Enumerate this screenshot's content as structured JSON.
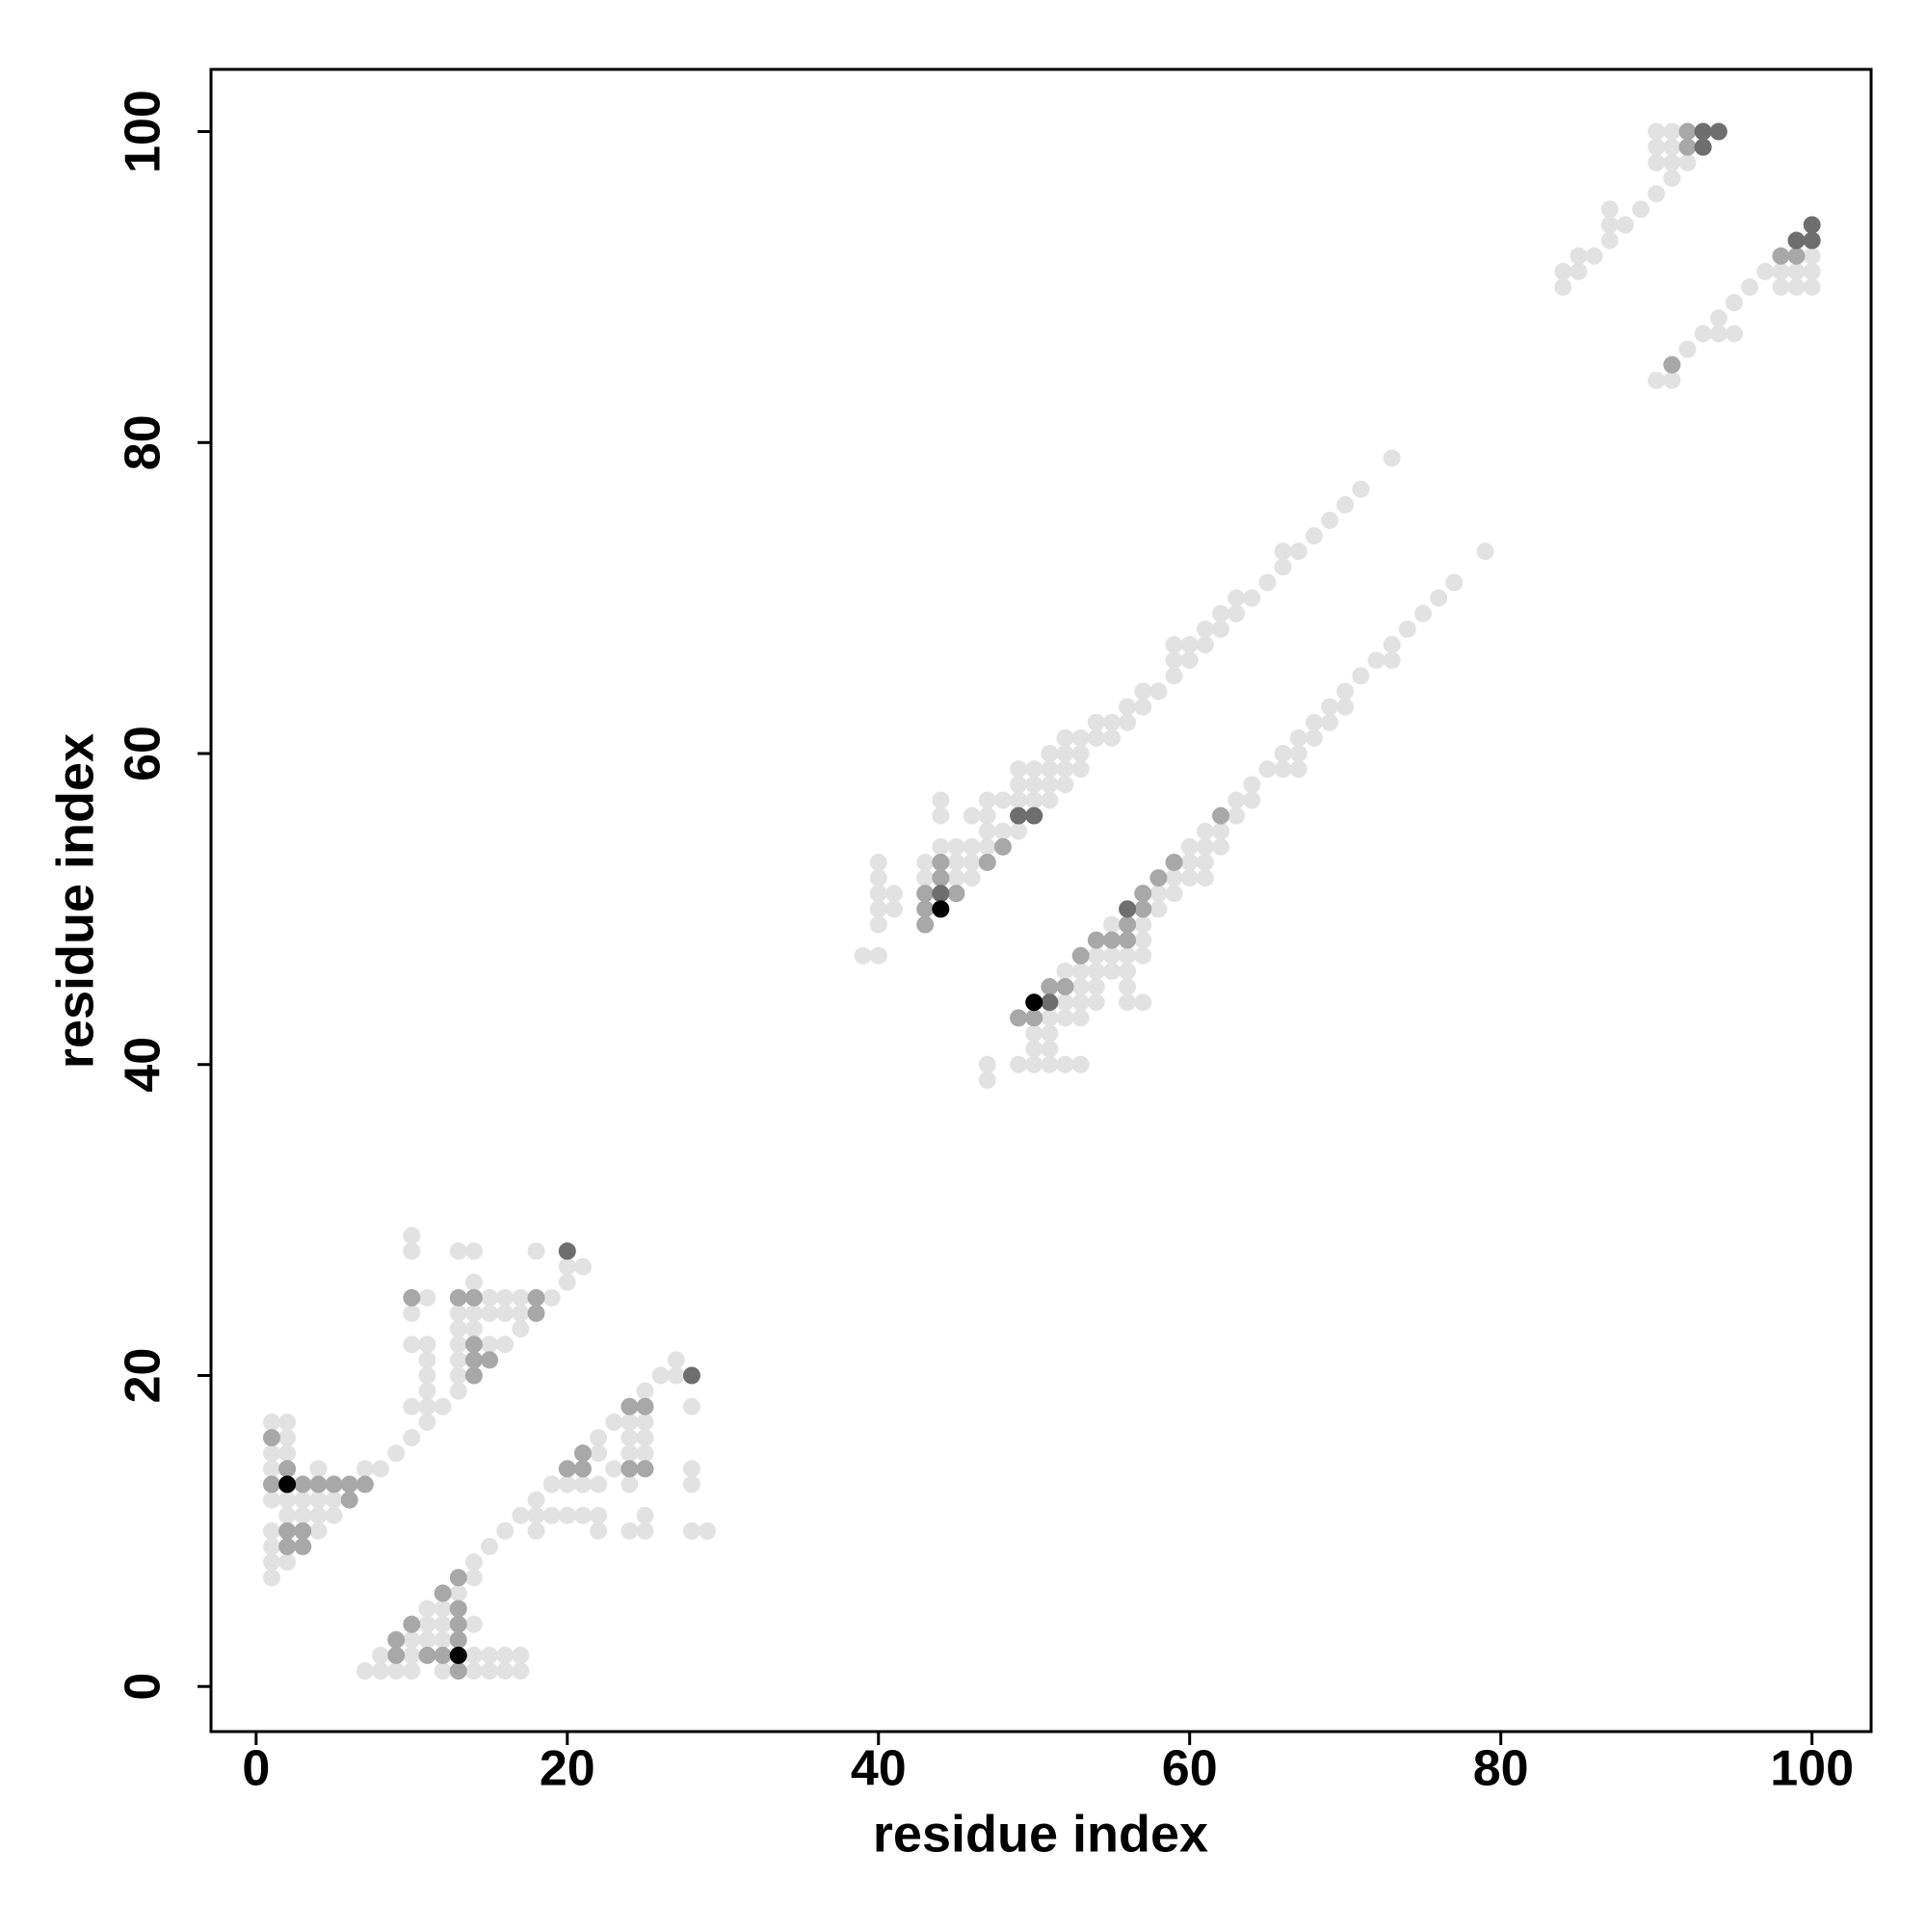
{
  "chart_data": {
    "type": "scatter",
    "xlabel": "residue index",
    "ylabel": "residue index",
    "xlim": [
      -2.9,
      103.8
    ],
    "ylim": [
      -2.9,
      104
    ],
    "xticks": [
      0,
      20,
      40,
      60,
      80,
      100
    ],
    "yticks": [
      0,
      20,
      40,
      60,
      80,
      100
    ],
    "series": [
      {
        "color": "#e2e2e2",
        "x": [
          1,
          1,
          1,
          1,
          1,
          1,
          1,
          1,
          2,
          2,
          2,
          2,
          2,
          2,
          3,
          3,
          4,
          4,
          4,
          4,
          5,
          5,
          7,
          7,
          8,
          8,
          8,
          9,
          9,
          10,
          10,
          10,
          10,
          10,
          10,
          10,
          10,
          10,
          11,
          11,
          11,
          11,
          11,
          11,
          11,
          11,
          11,
          11,
          12,
          12,
          12,
          12,
          12,
          13,
          13,
          13,
          13,
          13,
          13,
          13,
          13,
          14,
          14,
          14,
          14,
          14,
          14,
          14,
          14,
          14,
          15,
          15,
          15,
          15,
          15,
          15,
          16,
          16,
          16,
          16,
          16,
          16,
          17,
          17,
          17,
          17,
          17,
          17,
          18,
          18,
          18,
          18,
          19,
          19,
          19,
          20,
          20,
          20,
          20,
          21,
          21,
          21,
          22,
          22,
          22,
          22,
          22,
          23,
          23,
          24,
          24,
          24,
          24,
          24,
          25,
          25,
          25,
          25,
          25,
          25,
          26,
          27,
          27,
          28,
          28,
          28,
          28,
          29,
          39,
          40,
          40,
          40,
          40,
          40,
          40,
          41,
          41,
          43,
          43,
          44,
          44,
          44,
          45,
          45,
          45,
          46,
          46,
          46,
          46,
          47,
          47,
          47,
          47,
          47,
          47,
          48,
          48,
          49,
          49,
          49,
          49,
          49,
          50,
          50,
          50,
          50,
          50,
          50,
          51,
          51,
          51,
          51,
          51,
          51,
          51,
          51,
          52,
          52,
          52,
          52,
          52,
          52,
          52,
          52,
          53,
          53,
          53,
          53,
          53,
          53,
          53,
          53,
          54,
          54,
          54,
          54,
          54,
          54,
          55,
          55,
          55,
          55,
          55,
          56,
          56,
          56,
          56,
          56,
          56,
          57,
          57,
          57,
          57,
          57,
          57,
          58,
          58,
          58,
          59,
          59,
          59,
          59,
          59,
          60,
          60,
          60,
          60,
          60,
          61,
          61,
          61,
          61,
          61,
          61,
          62,
          62,
          62,
          62,
          63,
          63,
          63,
          63,
          64,
          64,
          64,
          65,
          65,
          66,
          66,
          66,
          66,
          67,
          67,
          67,
          67,
          68,
          68,
          68,
          69,
          69,
          69,
          70,
          70,
          70,
          71,
          71,
          72,
          73,
          73,
          73,
          74,
          75,
          76,
          77,
          79,
          84,
          84,
          85,
          85,
          86,
          87,
          87,
          87,
          88,
          89,
          90,
          90,
          90,
          90,
          90,
          91,
          91,
          91,
          91,
          91,
          92,
          92,
          93,
          94,
          94,
          95,
          95,
          96,
          97,
          98,
          98,
          99,
          99,
          100,
          100,
          100
        ],
        "values": [
          7,
          8,
          9,
          10,
          12,
          14,
          15,
          17,
          8,
          11,
          12,
          15,
          16,
          17,
          11,
          12,
          10,
          11,
          12,
          14,
          11,
          12,
          14,
          1,
          14,
          1,
          2,
          15,
          1,
          16,
          18,
          22,
          24,
          28,
          29,
          1,
          2,
          3,
          17,
          18,
          19,
          20,
          21,
          22,
          25,
          3,
          4,
          5,
          18,
          1,
          3,
          4,
          5,
          19,
          20,
          21,
          22,
          23,
          24,
          28,
          6,
          23,
          24,
          26,
          28,
          1,
          2,
          4,
          7,
          8,
          22,
          24,
          25,
          1,
          2,
          9,
          22,
          24,
          25,
          1,
          2,
          10,
          23,
          24,
          25,
          1,
          2,
          11,
          28,
          10,
          11,
          12,
          25,
          11,
          13,
          26,
          27,
          11,
          13,
          27,
          11,
          13,
          10,
          11,
          13,
          15,
          16,
          14,
          17,
          10,
          13,
          15,
          16,
          17,
          10,
          11,
          15,
          16,
          17,
          19,
          20,
          20,
          21,
          10,
          13,
          14,
          18,
          10,
          47,
          47,
          49,
          50,
          51,
          52,
          53,
          50,
          51,
          52,
          53,
          54,
          56,
          57,
          52,
          53,
          54,
          52,
          53,
          54,
          56,
          54,
          55,
          56,
          57,
          39,
          40,
          55,
          57,
          55,
          57,
          58,
          59,
          40,
          57,
          58,
          59,
          40,
          41,
          42,
          57,
          58,
          59,
          60,
          40,
          41,
          42,
          43,
          58,
          59,
          60,
          61,
          40,
          43,
          44,
          46,
          59,
          60,
          61,
          40,
          43,
          44,
          45,
          46,
          61,
          62,
          44,
          45,
          46,
          47,
          61,
          62,
          46,
          47,
          49,
          62,
          63,
          44,
          45,
          46,
          47,
          63,
          64,
          44,
          47,
          48,
          49,
          64,
          50,
          51,
          65,
          66,
          67,
          51,
          52,
          66,
          67,
          52,
          53,
          54,
          67,
          68,
          52,
          53,
          54,
          55,
          68,
          69,
          54,
          55,
          69,
          70,
          56,
          57,
          70,
          57,
          58,
          71,
          59,
          72,
          73,
          59,
          60,
          73,
          59,
          60,
          61,
          74,
          61,
          62,
          75,
          62,
          63,
          76,
          63,
          64,
          77,
          65,
          66,
          79,
          66,
          67,
          68,
          69,
          70,
          71,
          73,
          90,
          91,
          91,
          92,
          92,
          93,
          94,
          95,
          94,
          95,
          84,
          96,
          98,
          99,
          100,
          84,
          97,
          98,
          99,
          100,
          86,
          98,
          87,
          87,
          88,
          87,
          89,
          90,
          91,
          90,
          91,
          90,
          91,
          90,
          91,
          92
        ]
      },
      {
        "color": "#a8a8a8",
        "x": [
          1,
          1,
          2,
          3,
          3,
          4,
          5,
          6,
          6,
          7,
          14,
          14,
          14,
          14,
          15,
          18,
          18,
          13,
          10,
          9,
          10,
          12,
          13,
          13,
          13,
          13,
          13,
          12,
          11,
          9,
          20,
          21,
          21,
          24,
          24,
          25,
          25,
          43,
          43,
          44,
          44,
          45,
          47,
          48,
          49,
          50,
          51,
          52,
          53,
          54,
          55,
          56,
          56,
          57,
          57,
          58,
          59,
          62,
          92,
          92,
          91,
          98,
          99,
          43,
          2,
          3,
          2
        ],
        "values": [
          13,
          16,
          9,
          9,
          10,
          13,
          13,
          12,
          13,
          13,
          25,
          21,
          20,
          22,
          21,
          24,
          25,
          25,
          25,
          3,
          4,
          6,
          7,
          5,
          4,
          3,
          1,
          2,
          2,
          2,
          14,
          14,
          15,
          14,
          18,
          18,
          14,
          50,
          51,
          52,
          53,
          51,
          53,
          54,
          43,
          43,
          45,
          45,
          47,
          48,
          48,
          49,
          48,
          51,
          50,
          52,
          53,
          56,
          100,
          99,
          85,
          92,
          92,
          49,
          10,
          13,
          14
        ]
      },
      {
        "color": "#6e6e6e",
        "x": [
          44,
          93,
          94,
          93,
          99,
          100,
          100,
          51,
          56,
          20,
          28,
          50,
          49
        ],
        "values": [
          51,
          99,
          100,
          100,
          93,
          94,
          93,
          44,
          50,
          28,
          20,
          56,
          56
        ]
      },
      {
        "color": "#000000",
        "x": [
          2,
          13,
          44,
          50
        ],
        "values": [
          13,
          2,
          50,
          44
        ]
      }
    ]
  }
}
